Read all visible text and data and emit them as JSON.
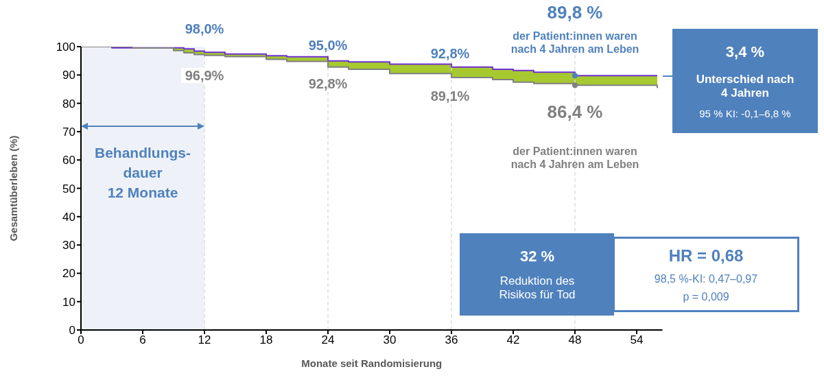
{
  "chart_data": {
    "type": "step",
    "xlabel": "Monate seit Randomisierung",
    "ylabel": "Gesamtüberleben (%)",
    "x": [
      0,
      3,
      5,
      9,
      10,
      11,
      12,
      14,
      18,
      20,
      24,
      26,
      30,
      36,
      40,
      42,
      44,
      48,
      55,
      56
    ],
    "series": [
      {
        "color": "#7030d0",
        "values": [
          100,
          99.6,
          99.6,
          99.6,
          99.2,
          98.4,
          98.0,
          97.4,
          96.8,
          96.4,
          95.0,
          94.6,
          93.8,
          92.8,
          92.0,
          91.6,
          91.0,
          89.8,
          89.8,
          89.8
        ]
      },
      {
        "color": "#808080",
        "values": [
          100,
          100,
          99.5,
          98.6,
          97.8,
          97.2,
          96.9,
          96.5,
          95.5,
          94.8,
          92.8,
          92.0,
          90.5,
          89.1,
          88.4,
          87.5,
          87.0,
          86.4,
          86.4,
          85.4
        ]
      }
    ],
    "xlim": [
      0,
      56.5
    ],
    "xticks": [
      0,
      6,
      12,
      18,
      24,
      30,
      36,
      42,
      48,
      54
    ],
    "ylim": [
      0,
      100
    ],
    "yticks": [
      0,
      10,
      20,
      30,
      40,
      50,
      60,
      70,
      80,
      90,
      100
    ],
    "bands": [
      {
        "axis": "x",
        "from": 0,
        "to": 12,
        "label": "Behandlungs-\ndauer\n12 Monate",
        "color": "#eef2f8"
      }
    ],
    "ref_lines": [
      {
        "axis": "x",
        "value": 12,
        "color": "#dddddd",
        "line_style": "dashed"
      },
      {
        "axis": "x",
        "value": 24,
        "color": "#dddddd",
        "line_style": "dashed"
      },
      {
        "axis": "x",
        "value": 36,
        "color": "#dddddd",
        "line_style": "dashed"
      },
      {
        "axis": "x",
        "value": 48,
        "color": "#dddddd",
        "line_style": "dashed"
      }
    ],
    "annotations": [
      {
        "text": "98,0%",
        "x": 12,
        "y": 98.0
      },
      {
        "text": "96,9%",
        "x": 12,
        "y": 96.9
      },
      {
        "text": "95,0%",
        "x": 24,
        "y": 95.0
      },
      {
        "text": "92,8%",
        "x": 24,
        "y": 92.8
      },
      {
        "text": "92,8%",
        "x": 36,
        "y": 92.8
      },
      {
        "text": "89,1%",
        "x": 36,
        "y": 89.1
      },
      {
        "text": "89,8 %",
        "x": 48,
        "y": 89.8
      },
      "der Patient:innen waren\nnach 4 Jahren am Leben",
      {
        "text": "86,4 %",
        "x": 48,
        "y": 86.4
      },
      "der Patient:innen waren\nnach 4 Jahren am Leben",
      "3,4 %",
      "Unterschied nach\n4 Jahren",
      "95 % KI: -0,1–6,8 %",
      "32 %",
      "Reduktion des\nRisikos für Tod",
      "HR = 0,68",
      "98,5 %-KI: 0,47–0,97",
      "p = 0,009"
    ]
  }
}
